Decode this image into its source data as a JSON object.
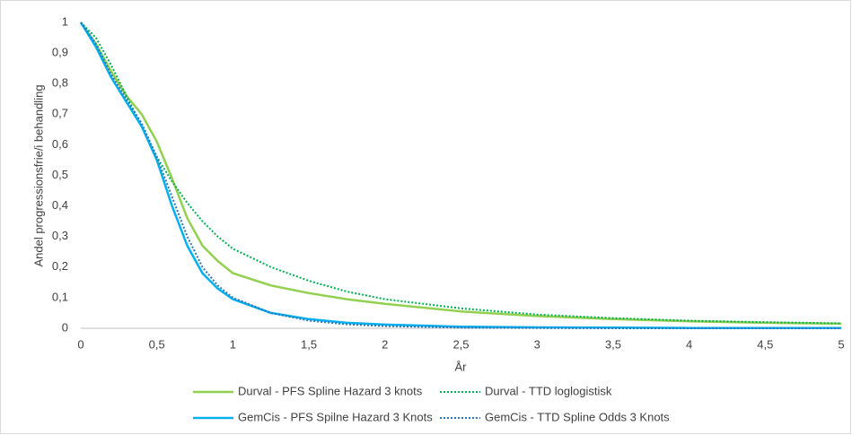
{
  "chart_data": {
    "type": "line",
    "y_label": "Andel progressionsfrie/i behandling",
    "x_label": "År",
    "x": [
      0,
      0.1,
      0.2,
      0.3,
      0.4,
      0.5,
      0.6,
      0.7,
      0.8,
      0.9,
      1,
      1.25,
      1.5,
      1.75,
      2,
      2.5,
      3,
      3.5,
      4,
      4.5,
      5
    ],
    "series": [
      {
        "name": "Durval - PFS Spline Hazard 3 knots",
        "color": "#92d050",
        "style": "solid",
        "values": [
          1,
          0.93,
          0.84,
          0.76,
          0.7,
          0.61,
          0.49,
          0.36,
          0.27,
          0.22,
          0.18,
          0.14,
          0.115,
          0.095,
          0.08,
          0.055,
          0.04,
          0.03,
          0.023,
          0.018,
          0.015
        ]
      },
      {
        "name": "Durval - TTD loglogistisk",
        "color": "#00b050",
        "style": "dotted",
        "values": [
          1,
          0.95,
          0.86,
          0.76,
          0.66,
          0.56,
          0.48,
          0.41,
          0.35,
          0.3,
          0.26,
          0.2,
          0.155,
          0.12,
          0.095,
          0.065,
          0.045,
          0.033,
          0.025,
          0.02,
          0.016
        ]
      },
      {
        "name": "GemCis - PFS Spilne Hazard 3 Knots",
        "color": "#00b0f0",
        "style": "solid",
        "values": [
          1,
          0.92,
          0.82,
          0.74,
          0.66,
          0.55,
          0.4,
          0.27,
          0.18,
          0.13,
          0.095,
          0.05,
          0.03,
          0.018,
          0.012,
          0.005,
          0.003,
          0.002,
          0.001,
          0.001,
          0.001
        ]
      },
      {
        "name": "GemCis - TTD Spline Odds 3 Knots",
        "color": "#2e75b6",
        "style": "dotted",
        "values": [
          1,
          0.93,
          0.83,
          0.75,
          0.67,
          0.56,
          0.43,
          0.3,
          0.2,
          0.14,
          0.1,
          0.05,
          0.025,
          0.013,
          0.007,
          0.002,
          0.001,
          0,
          0,
          0,
          0
        ]
      }
    ],
    "xlim": [
      0,
      5
    ],
    "xticks": [
      0,
      {
        "value": 0.5,
        "label": "0,5"
      },
      1,
      {
        "value": 1.5,
        "label": "1,5"
      },
      2,
      {
        "value": 2.5,
        "label": "2,5"
      },
      3,
      {
        "value": 3.5,
        "label": "3,5"
      },
      4,
      {
        "value": 4.5,
        "label": "4,5"
      },
      5
    ],
    "ylim": [
      0,
      1
    ],
    "yticks": [
      0,
      {
        "value": 0.1,
        "label": "0,1"
      },
      {
        "value": 0.2,
        "label": "0,2"
      },
      {
        "value": 0.3,
        "label": "0,3"
      },
      {
        "value": 0.4,
        "label": "0,4"
      },
      {
        "value": 0.5,
        "label": "0,5"
      },
      {
        "value": 0.6,
        "label": "0,6"
      },
      {
        "value": 0.7,
        "label": "0,7"
      },
      {
        "value": 0.8,
        "label": "0,8"
      },
      {
        "value": 0.9,
        "label": "0,9"
      },
      1
    ],
    "grid": false,
    "legend": "bottom"
  }
}
